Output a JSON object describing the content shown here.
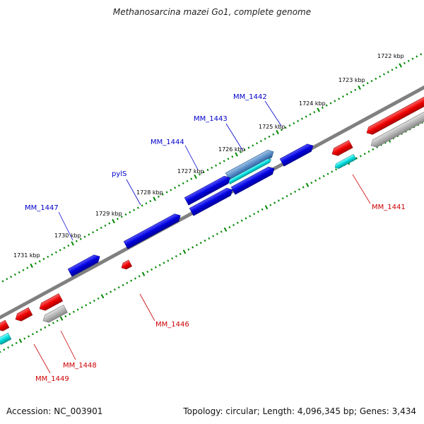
{
  "title": "Methanosarcina mazei Go1, complete genome",
  "footer": {
    "accession": "Accession: NC_003901",
    "topology": "Topology: circular; Length: 4,096,345 bp; Genes: 3,434"
  },
  "ruler_labels": [
    "1722 kbp",
    "1723 kbp",
    "1724 kbp",
    "1725 kbp",
    "1726 kbp",
    "1727 kbp",
    "1728 kbp",
    "1729 kbp",
    "1730 kbp",
    "1731 kbp"
  ],
  "forward_labels": [
    "MM_1442",
    "MM_1443",
    "MM_1444",
    "pylS",
    "MM_1447"
  ],
  "reverse_labels": [
    "MM_1441",
    "MM_1446",
    "MM_1448",
    "MM_1449"
  ],
  "colors": {
    "forward_gene": "#0000dd",
    "forward_label": "#0000cc",
    "reverse_gene": "#ee0000",
    "reverse_label": "#cc0000",
    "rna_gene": "#00cccc",
    "pseudo_gene": "#aaaaaa",
    "backbone": "#808080",
    "ruler": "#008800"
  }
}
